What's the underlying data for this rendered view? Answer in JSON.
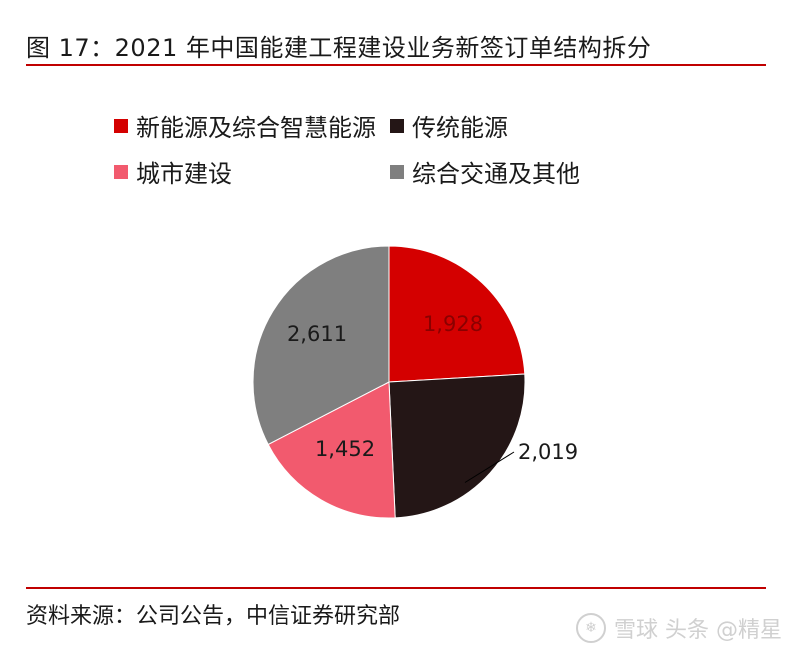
{
  "header": {
    "title": "图 17：2021 年中国能建工程建设业务新签订单结构拆分"
  },
  "footer": {
    "source": "资料来源：公司公告，中信证券研究部"
  },
  "watermark": {
    "text": "雪球 头条 @精星"
  },
  "chart_data": {
    "type": "pie",
    "legend_position": "top",
    "slices": [
      {
        "name": "新能源及综合智慧能源",
        "value": 1928,
        "label": "1,928",
        "color": "#d40000"
      },
      {
        "name": "传统能源",
        "value": 2019,
        "label": "2,019",
        "color": "#241616"
      },
      {
        "name": "城市建设",
        "value": 1452,
        "label": "1,452",
        "color": "#f25a6e"
      },
      {
        "name": "综合交通及其他",
        "value": 2611,
        "label": "2,611",
        "color": "#7f7f7f"
      }
    ]
  }
}
